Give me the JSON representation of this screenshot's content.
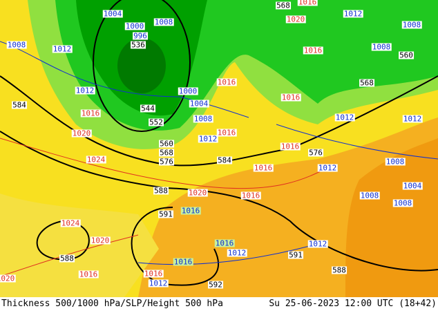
{
  "caption": {
    "title": "Thickness 500/1000 hPa/SLP/Height 500 hPa",
    "datetime": "Su 25-06-2023 12:00 UTC (18+42)"
  },
  "colors": {
    "deep_green": "#00a000",
    "green": "#20c820",
    "light_green": "#90e040",
    "yellow": "#f8e020",
    "light_yellow": "#f8f060",
    "orange": "#f5b020",
    "dark_orange": "#f09a10"
  },
  "slp_labels": [
    "1004",
    "1000",
    "996",
    "1008",
    "1008",
    "1012",
    "1012",
    "1000",
    "1004",
    "1008",
    "1012",
    "1012",
    "1008",
    "1008",
    "1012",
    "1012",
    "1008",
    "1012",
    "1004",
    "1008",
    "1008",
    "1012",
    "1012",
    "1012"
  ],
  "thickness_labels": [
    "1016",
    "1020",
    "1016",
    "1016",
    "1016",
    "1016",
    "1020",
    "1016",
    "1024",
    "1016",
    "1016",
    "1020",
    "1016",
    "1024",
    "1020",
    "1016",
    "1016",
    "1020",
    "1016",
    "1016",
    "1016"
  ],
  "height_labels": [
    "568",
    "560",
    "568",
    "536",
    "544",
    "552",
    "584",
    "560",
    "568",
    "576",
    "584",
    "576",
    "588",
    "591",
    "588",
    "588",
    "592",
    "591"
  ]
}
